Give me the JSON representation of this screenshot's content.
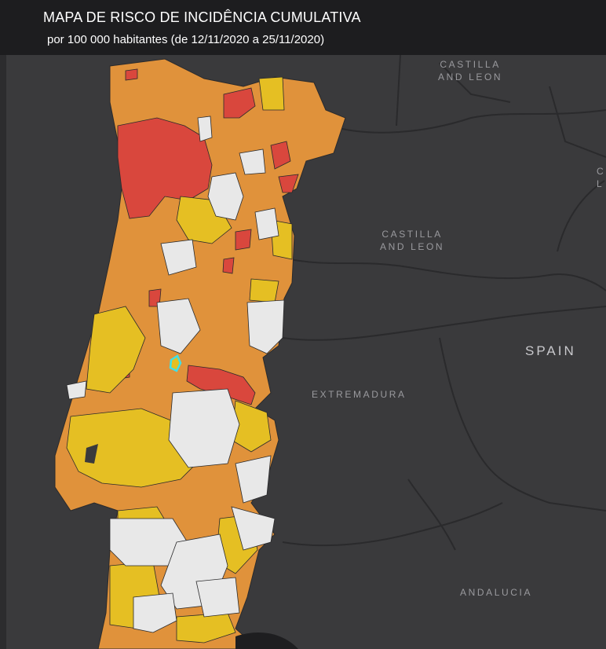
{
  "header": {
    "title": "MAPA DE RISCO DE INCIDÊNCIA CUMULATIVA",
    "subtitle": "por 100 000 habitantes (de 12/11/2020 a 25/11/2020)"
  },
  "map_labels": {
    "castilla_top_1": "CASTILLA",
    "castilla_top_2": "AND LEON",
    "castilla_mid_1": "CASTILLA",
    "castilla_mid_2": "AND LEON",
    "extremadura": "EXTREMADURA",
    "spain": "SPAIN",
    "andalucia": "ANDALUCIA",
    "edge_c": "C",
    "edge_l": "L"
  },
  "colors": {
    "background": "#3a3a3c",
    "border_lines": "#2a2a2c",
    "very_high": "#d9473d",
    "high": "#e0923b",
    "moderate": "#e5bf23",
    "low": "#e8e8e8",
    "selected_outline": "#3fe0e8"
  }
}
